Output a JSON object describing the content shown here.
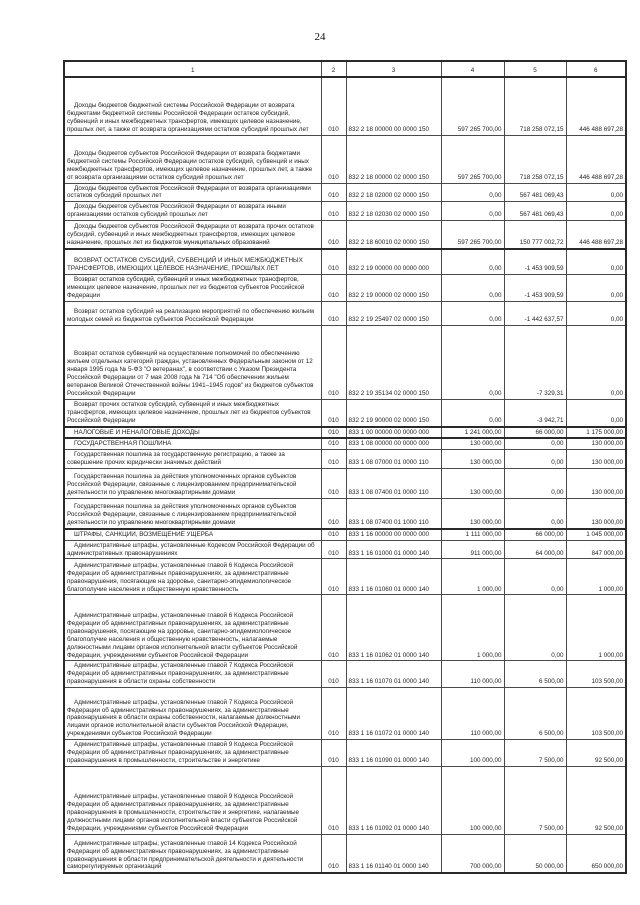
{
  "page_number": "24",
  "table": {
    "col_headers": [
      "1",
      "2",
      "3",
      "4",
      "5",
      "6"
    ],
    "rows": [
      {
        "col1": "Доходы бюджетов бюджетной системы Российской Федерации от возврата бюджетами бюджетной системы Российской Федерации остатков субсидий, субвенций и иных межбюджетных трансфертов, имеющих целевое назначение, прошлых лет, а также от возврата организациями остатков субсидий прошлых лет",
        "col2": "010",
        "col3": "832 2 18 00000 00 0000 150",
        "col4": "597 265 700,00",
        "col5": "718 258 072,15",
        "col6": "446 488 697,28"
      },
      {
        "col1": "Доходы бюджетов субъектов Российской Федерации от возврата бюджетами бюджетной системы Российской Федерации остатков субсидий, субвенций и иных межбюджетных трансфертов, имеющих целевое назначение, прошлых лет, а также от возврата организациями остатков субсидий прошлых лет",
        "col2": "010",
        "col3": "832 2 18 00000 02 0000 150",
        "col4": "597 265 700,00",
        "col5": "718 258 072,15",
        "col6": "446 488 697,28"
      },
      {
        "col1": "Доходы бюджетов субъектов Российской Федерации от возврата организациями остатков субсидий прошлых лет",
        "col2": "010",
        "col3": "832 2 18 02000 02 0000 150",
        "col4": "0,00",
        "col5": "567 481 069,43",
        "col6": "0,00"
      },
      {
        "col1": "Доходы бюджетов субъектов Российской Федерации от возврата иными организациями остатков субсидий прошлых лет",
        "col2": "010",
        "col3": "832 2 18 02030 02 0000 150",
        "col4": "0,00",
        "col5": "567 481 069,43",
        "col6": "0,00"
      },
      {
        "col1": "Доходы бюджетов субъектов Российской Федерации от возврата прочих остатков субсидий, субвенций и иных межбюджетных трансфертов, имеющих целевое назначение, прошлых лет из бюджетов муниципальных образований",
        "col2": "010",
        "col3": "832 2 18 60010 02 0000 150",
        "col4": "597 265 700,00",
        "col5": "150 777 002,72",
        "col6": "446 488 697,28"
      },
      {
        "col1": "ВОЗВРАТ ОСТАТКОВ СУБСИДИЙ, СУБВЕНЦИЙ И ИНЫХ МЕЖБЮДЖЕТНЫХ ТРАНСФЕРТОВ, ИМЕЮЩИХ ЦЕЛЕВОЕ НАЗНАЧЕНИЕ, ПРОШЛЫХ ЛЕТ",
        "col2": "010",
        "col3": "832 2 19 00000 00 0000 000",
        "col4": "0,00",
        "col5": "-1 453 909,59",
        "col6": "0,00"
      },
      {
        "col1": "Возврат остатков субсидий, субвенций и иных межбюджетных трансфертов, имеющих целевое назначение, прошлых лет из бюджетов субъектов Российской Федерации",
        "col2": "010",
        "col3": "832 2 19 00000 02 0000 150",
        "col4": "0,00",
        "col5": "-1 453 909,59",
        "col6": "0,00"
      },
      {
        "col1": "Возврат остатков субсидий на реализацию мероприятий по обеспечению жильем молодых семей из бюджетов субъектов Российской Федерации",
        "col2": "010",
        "col3": "832 2 19 25497 02 0000 150",
        "col4": "0,00",
        "col5": "-1 442 637,57",
        "col6": "0,00"
      },
      {
        "col1": "Возврат остатков субвенций на осуществление полномочий по обеспечению жильем отдельных категорий граждан, установленных Федеральным законом от 12 января 1995 года № 5-ФЗ \"О ветеранах\", в соответствии с Указом Президента Российской Федерации от 7 мая 2008 года № 714 \"Об обеспечении жильем ветеранов Великой Отечественной войны 1941–1945 годов\" из бюджетов субъектов Российской Федерации",
        "col2": "010",
        "col3": "832 2 19 35134 02 0000 150",
        "col4": "0,00",
        "col5": "-7 329,31",
        "col6": "0,00"
      },
      {
        "col1": "Возврат прочих остатков субсидий, субвенций и иных межбюджетных трансфертов, имеющих целевое назначение, прошлых лет из бюджетов субъектов Российской Федерации",
        "col2": "010",
        "col3": "832 2 19 90000 02 0000 150",
        "col4": "0,00",
        "col5": "-3 942,71",
        "col6": "0,00"
      },
      {
        "col1": "НАЛОГОВЫЕ И НЕНАЛОГОВЫЕ ДОХОДЫ",
        "col2": "010",
        "col3": "833 1 00 00000 00 0000 000",
        "col4": "1 241 000,00",
        "col5": "66 000,00",
        "col6": "1 175 000,00"
      },
      {
        "col1": "ГОСУДАРСТВЕННАЯ ПОШЛИНА",
        "col2": "010",
        "col3": "833 1 08 00000 00 0000 000",
        "col4": "130 000,00",
        "col5": "0,00",
        "col6": "130 000,00"
      },
      {
        "col1": "Государственная пошлина за государственную регистрацию, а также за совершение прочих юридически значимых действий",
        "col2": "010",
        "col3": "833 1 08 07000 01 0000 110",
        "col4": "130 000,00",
        "col5": "0,00",
        "col6": "130 000,00"
      },
      {
        "col1": "Государственная пошлина за действия уполномоченных органов субъектов Российской Федерации, связанные с лицензированием предпринимательской деятельности по управлению многоквартирными домами",
        "col2": "010",
        "col3": "833 1 08 07400 01 0000 110",
        "col4": "130 000,00",
        "col5": "0,00",
        "col6": "130 000,00"
      },
      {
        "col1": "Государственная пошлина за действия уполномоченных органов субъектов Российской Федерации, связанные с лицензированием предпринимательской деятельности по управлению многоквартирными домами",
        "col2": "010",
        "col3": "833 1 08 07400 01 1000 110",
        "col4": "130 000,00",
        "col5": "0,00",
        "col6": "130 000,00"
      },
      {
        "col1": "ШТРАФЫ, САНКЦИИ, ВОЗМЕЩЕНИЕ УЩЕРБА",
        "col2": "010",
        "col3": "833 1 16 00000 00 0000 000",
        "col4": "1 111 000,00",
        "col5": "66 000,00",
        "col6": "1 045 000,00"
      },
      {
        "col1": "Административные штрафы, установленные Кодексом Российской Федерации об административных правонарушениях",
        "col2": "010",
        "col3": "833 1 16 01000 01 0000 140",
        "col4": "911 000,00",
        "col5": "64 000,00",
        "col6": "847 000,00"
      },
      {
        "col1": "Административные штрафы, установленные главой 6 Кодекса Российской Федерации об административных правонарушениях, за административные правонарушения, посягающие на здоровье, санитарно-эпидемиологическое благополучие населения и общественную нравственность",
        "col2": "010",
        "col3": "833 1 16 01060 01 0000 140",
        "col4": "1 000,00",
        "col5": "0,00",
        "col6": "1 000,00"
      },
      {
        "col1": "Административные штрафы, установленные главой 6 Кодекса Российской Федерации об административных правонарушениях, за административные правонарушения, посягающие на здоровье, санитарно-эпидемиологическое благополучие населения и общественную нравственность, налагаемые должностными лицами органов исполнительной власти субъектов Российской Федерации, учреждениями субъектов Российской Федерации",
        "col2": "010",
        "col3": "833 1 16 01062 01 0000 140",
        "col4": "1 000,00",
        "col5": "0,00",
        "col6": "1 000,00"
      },
      {
        "col1": "Административные штрафы, установленные главой 7 Кодекса Российской Федерации об административных правонарушениях, за административные правонарушения в области охраны собственности",
        "col2": "010",
        "col3": "833 1 16 01070 01 0000 140",
        "col4": "110 000,00",
        "col5": "6 500,00",
        "col6": "103 500,00"
      },
      {
        "col1": "Административные штрафы, установленные главой 7 Кодекса Российской Федерации об административных правонарушениях, за административные правонарушения в области охраны собственности, налагаемые должностными лицами органов исполнительной власти субъектов Российской Федерации, учреждениями субъектов Российской Федерации",
        "col2": "010",
        "col3": "833 1 16 01072 01 0000 140",
        "col4": "110 000,00",
        "col5": "6 500,00",
        "col6": "103 500,00"
      },
      {
        "col1": "Административные штрафы, установленные главой 9 Кодекса Российской Федерации об административных правонарушениях, за административные правонарушения в промышленности, строительстве и энергетике",
        "col2": "010",
        "col3": "833 1 16 01090 01 0000 140",
        "col4": "100 000,00",
        "col5": "7 500,00",
        "col6": "92 500,00"
      },
      {
        "col1": "Административные штрафы, установленные главой 9 Кодекса Российской Федерации об административных правонарушениях, за административные правонарушения в промышленности, строительстве и энергетике, налагаемые должностными лицами органов исполнительной власти субъектов Российской Федерации, учреждениями субъектов Российской Федерации",
        "col2": "010",
        "col3": "833 1 16 01092 01 0000 140",
        "col4": "100 000,00",
        "col5": "7 500,00",
        "col6": "92 500,00"
      },
      {
        "col1": "Административные штрафы, установленные главой 14 Кодекса Российской Федерации об административных правонарушениях, за административные правонарушения в области предпринимательской деятельности и деятельности саморегулируемых организаций",
        "col2": "010",
        "col3": "833 1 16 01140 01 0000 140",
        "col4": "700 000,00",
        "col5": "50 000,00",
        "col6": "650 000,00"
      }
    ]
  }
}
